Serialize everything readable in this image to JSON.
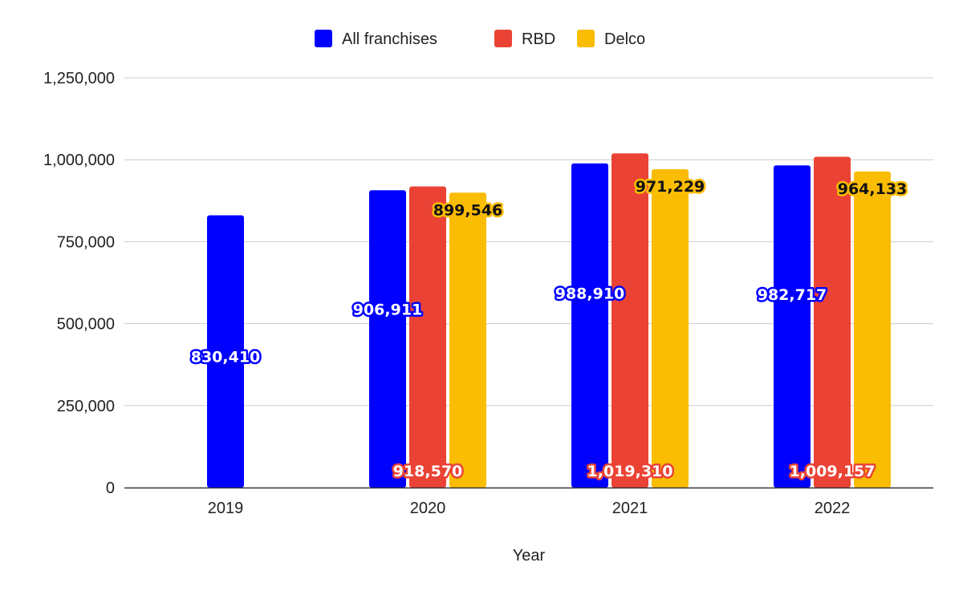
{
  "chart_data": {
    "type": "bar",
    "title": "",
    "xlabel": "Year",
    "ylabel": "",
    "categories": [
      "2019",
      "2020",
      "2021",
      "2022"
    ],
    "series": [
      {
        "name": "All franchises",
        "color": "#0000ff",
        "values": [
          830410,
          906911,
          988910,
          982717
        ],
        "labels": [
          "830,410",
          "906,911",
          "988,910",
          "982,717"
        ]
      },
      {
        "name": "RBD",
        "color": "#ea4335",
        "values": [
          null,
          918570,
          1019310,
          1009157
        ],
        "labels": [
          "",
          "918,570",
          "1,019,310",
          "1,009,157"
        ]
      },
      {
        "name": "Delco",
        "color": "#fbbc04",
        "values": [
          null,
          899546,
          971229,
          964133
        ],
        "labels": [
          "",
          "899,546",
          "971,229",
          "964,133"
        ]
      }
    ],
    "ylim": [
      0,
      1250000
    ],
    "yticks": [
      0,
      250000,
      500000,
      750000,
      1000000,
      1250000
    ],
    "ytick_labels": [
      "0",
      "250,000",
      "500,000",
      "750,000",
      "1,000,000",
      "1,250,000"
    ],
    "grid": true,
    "legend_position": "top"
  }
}
